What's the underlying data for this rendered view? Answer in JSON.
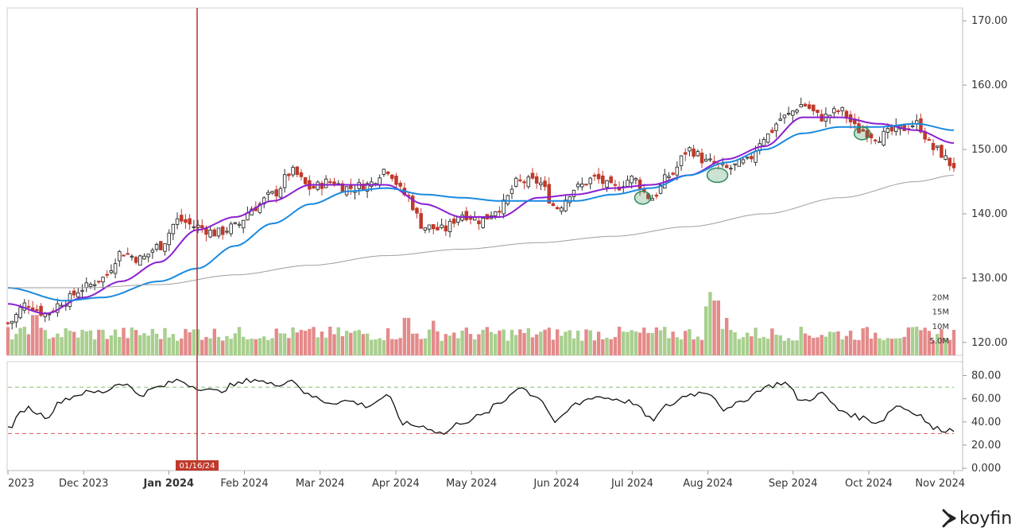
{
  "chart_data": {
    "type": "candlestick",
    "panels": [
      "price",
      "volume",
      "oscillator"
    ],
    "price_axis": {
      "ticks": [
        "170.00",
        "160.00",
        "150.00",
        "140.00",
        "130.00",
        "120.00"
      ],
      "values": [
        170,
        160,
        150,
        140,
        130,
        120
      ],
      "range": [
        118,
        172
      ]
    },
    "volume_axis": {
      "ticks": [
        "20M",
        "15M",
        "10M",
        "5.0M"
      ],
      "values": [
        20,
        15,
        10,
        5
      ],
      "range": [
        0,
        24
      ]
    },
    "oscillator_axis": {
      "ticks": [
        "80.00",
        "60.00",
        "40.00",
        "20.00",
        "0.000"
      ],
      "values": [
        80,
        60,
        40,
        20,
        0
      ],
      "range": [
        -2,
        92
      ],
      "upper_band": 70,
      "lower_band": 30
    },
    "x_labels": [
      "2023",
      "Dec 2023",
      "Jan 2024",
      "Feb 2024",
      "Mar 2024",
      "Apr 2024",
      "May 2024",
      "Jun 2024",
      "Jul 2024",
      "Aug 2024",
      "Sep 2024",
      "Oct 2024",
      "Nov 2024"
    ],
    "x_label_positions": [
      0,
      0.08,
      0.17,
      0.25,
      0.33,
      0.41,
      0.49,
      0.58,
      0.66,
      0.74,
      0.83,
      0.91,
      1.0
    ],
    "bold_label": "Jan 2024",
    "crosshair": {
      "label": "01/16/24",
      "pos": 0.2
    },
    "series": [
      {
        "name": "Close",
        "type": "candles",
        "color_up": "#2b2b2b",
        "color_down": "#c0392b",
        "anchors": [
          [
            0,
            123
          ],
          [
            0.02,
            126
          ],
          [
            0.04,
            124.5
          ],
          [
            0.06,
            126.5
          ],
          [
            0.08,
            128.5
          ],
          [
            0.1,
            130
          ],
          [
            0.12,
            134
          ],
          [
            0.14,
            133
          ],
          [
            0.16,
            135
          ],
          [
            0.18,
            139
          ],
          [
            0.2,
            138
          ],
          [
            0.22,
            137
          ],
          [
            0.24,
            138
          ],
          [
            0.26,
            141
          ],
          [
            0.28,
            143
          ],
          [
            0.3,
            146.5
          ],
          [
            0.32,
            144
          ],
          [
            0.34,
            145
          ],
          [
            0.36,
            144
          ],
          [
            0.38,
            144.5
          ],
          [
            0.4,
            147
          ],
          [
            0.42,
            143
          ],
          [
            0.44,
            138
          ],
          [
            0.46,
            137.5
          ],
          [
            0.48,
            140
          ],
          [
            0.5,
            139
          ],
          [
            0.52,
            141
          ],
          [
            0.54,
            145
          ],
          [
            0.56,
            145
          ],
          [
            0.58,
            141
          ],
          [
            0.6,
            144
          ],
          [
            0.62,
            145.5
          ],
          [
            0.64,
            144
          ],
          [
            0.66,
            145.5
          ],
          [
            0.68,
            142.5
          ],
          [
            0.7,
            146
          ],
          [
            0.72,
            150
          ],
          [
            0.74,
            148
          ],
          [
            0.76,
            147
          ],
          [
            0.78,
            148
          ],
          [
            0.8,
            152
          ],
          [
            0.82,
            155
          ],
          [
            0.84,
            157
          ],
          [
            0.86,
            155
          ],
          [
            0.88,
            156
          ],
          [
            0.9,
            153
          ],
          [
            0.92,
            152
          ],
          [
            0.94,
            153
          ],
          [
            0.96,
            154
          ],
          [
            0.98,
            150
          ],
          [
            1.0,
            147.5
          ]
        ]
      },
      {
        "name": "MA short",
        "type": "line",
        "color": "#8a1fd1",
        "anchors": [
          [
            0,
            126
          ],
          [
            0.04,
            124.5
          ],
          [
            0.08,
            127
          ],
          [
            0.12,
            129.5
          ],
          [
            0.16,
            132.5
          ],
          [
            0.2,
            137.5
          ],
          [
            0.24,
            139.5
          ],
          [
            0.28,
            142
          ],
          [
            0.32,
            144.5
          ],
          [
            0.36,
            144.5
          ],
          [
            0.4,
            144.5
          ],
          [
            0.44,
            141.5
          ],
          [
            0.48,
            139.5
          ],
          [
            0.52,
            139.5
          ],
          [
            0.56,
            142.5
          ],
          [
            0.6,
            143
          ],
          [
            0.64,
            144
          ],
          [
            0.68,
            144.5
          ],
          [
            0.72,
            146
          ],
          [
            0.76,
            148.5
          ],
          [
            0.8,
            150.5
          ],
          [
            0.84,
            155
          ],
          [
            0.88,
            155
          ],
          [
            0.92,
            154
          ],
          [
            0.96,
            153
          ],
          [
            1.0,
            151
          ]
        ]
      },
      {
        "name": "MA mid",
        "type": "line",
        "color": "#1a8ae0",
        "anchors": [
          [
            0,
            128.5
          ],
          [
            0.06,
            126.5
          ],
          [
            0.1,
            127
          ],
          [
            0.16,
            129.5
          ],
          [
            0.2,
            131.5
          ],
          [
            0.24,
            135
          ],
          [
            0.28,
            138.5
          ],
          [
            0.32,
            141.5
          ],
          [
            0.36,
            143.5
          ],
          [
            0.4,
            144
          ],
          [
            0.44,
            143
          ],
          [
            0.48,
            142.5
          ],
          [
            0.52,
            142
          ],
          [
            0.56,
            142
          ],
          [
            0.6,
            142
          ],
          [
            0.64,
            143
          ],
          [
            0.68,
            144
          ],
          [
            0.72,
            146
          ],
          [
            0.76,
            148
          ],
          [
            0.8,
            150
          ],
          [
            0.84,
            152.5
          ],
          [
            0.88,
            153.5
          ],
          [
            0.92,
            153.5
          ],
          [
            0.96,
            154
          ],
          [
            1.0,
            153
          ]
        ]
      },
      {
        "name": "MA long",
        "type": "line",
        "color": "#9e9e9e",
        "anchors": [
          [
            0,
            128.5
          ],
          [
            0.08,
            128.5
          ],
          [
            0.16,
            129
          ],
          [
            0.24,
            130.5
          ],
          [
            0.32,
            132
          ],
          [
            0.4,
            133.5
          ],
          [
            0.48,
            134.5
          ],
          [
            0.56,
            135.5
          ],
          [
            0.64,
            136.5
          ],
          [
            0.72,
            138
          ],
          [
            0.8,
            140
          ],
          [
            0.88,
            142.5
          ],
          [
            0.96,
            145
          ],
          [
            1.0,
            146
          ]
        ]
      },
      {
        "name": "Oscillator",
        "type": "line",
        "color": "#111111",
        "anchors": [
          [
            0,
            35
          ],
          [
            0.02,
            52
          ],
          [
            0.04,
            45
          ],
          [
            0.06,
            60
          ],
          [
            0.08,
            65
          ],
          [
            0.1,
            66
          ],
          [
            0.12,
            74
          ],
          [
            0.14,
            64
          ],
          [
            0.16,
            70
          ],
          [
            0.18,
            76
          ],
          [
            0.2,
            70
          ],
          [
            0.22,
            66
          ],
          [
            0.24,
            72
          ],
          [
            0.26,
            77
          ],
          [
            0.28,
            72
          ],
          [
            0.3,
            76
          ],
          [
            0.32,
            62
          ],
          [
            0.34,
            57
          ],
          [
            0.36,
            58
          ],
          [
            0.38,
            54
          ],
          [
            0.4,
            62
          ],
          [
            0.42,
            38
          ],
          [
            0.44,
            36
          ],
          [
            0.46,
            30
          ],
          [
            0.48,
            40
          ],
          [
            0.5,
            45
          ],
          [
            0.52,
            56
          ],
          [
            0.54,
            70
          ],
          [
            0.56,
            62
          ],
          [
            0.58,
            40
          ],
          [
            0.6,
            55
          ],
          [
            0.62,
            62
          ],
          [
            0.64,
            60
          ],
          [
            0.66,
            57
          ],
          [
            0.68,
            42
          ],
          [
            0.7,
            55
          ],
          [
            0.72,
            64
          ],
          [
            0.74,
            66
          ],
          [
            0.76,
            50
          ],
          [
            0.78,
            60
          ],
          [
            0.8,
            70
          ],
          [
            0.82,
            74
          ],
          [
            0.84,
            58
          ],
          [
            0.86,
            64
          ],
          [
            0.88,
            50
          ],
          [
            0.9,
            44
          ],
          [
            0.92,
            40
          ],
          [
            0.94,
            54
          ],
          [
            0.96,
            48
          ],
          [
            0.98,
            34
          ],
          [
            1.0,
            33
          ]
        ]
      }
    ],
    "volume": {
      "color_up": "#a8cf8e",
      "color_down": "#e48a8a",
      "spikes": [
        [
          0.03,
          14
        ],
        [
          0.2,
          9
        ],
        [
          0.42,
          13
        ],
        [
          0.45,
          12
        ],
        [
          0.74,
          17
        ],
        [
          0.745,
          22
        ],
        [
          0.75,
          19
        ],
        [
          0.76,
          13
        ]
      ]
    },
    "annotations": [
      {
        "type": "ellipse",
        "color": "#2e8b57",
        "x": 0.671,
        "y": 142.5
      },
      {
        "type": "ellipse",
        "color": "#2e8b57",
        "x": 0.75,
        "y": 146
      },
      {
        "type": "ellipse",
        "color": "#2e8b57",
        "x": 0.903,
        "y": 152.5
      }
    ]
  },
  "brand": {
    "name": "koyfin"
  }
}
